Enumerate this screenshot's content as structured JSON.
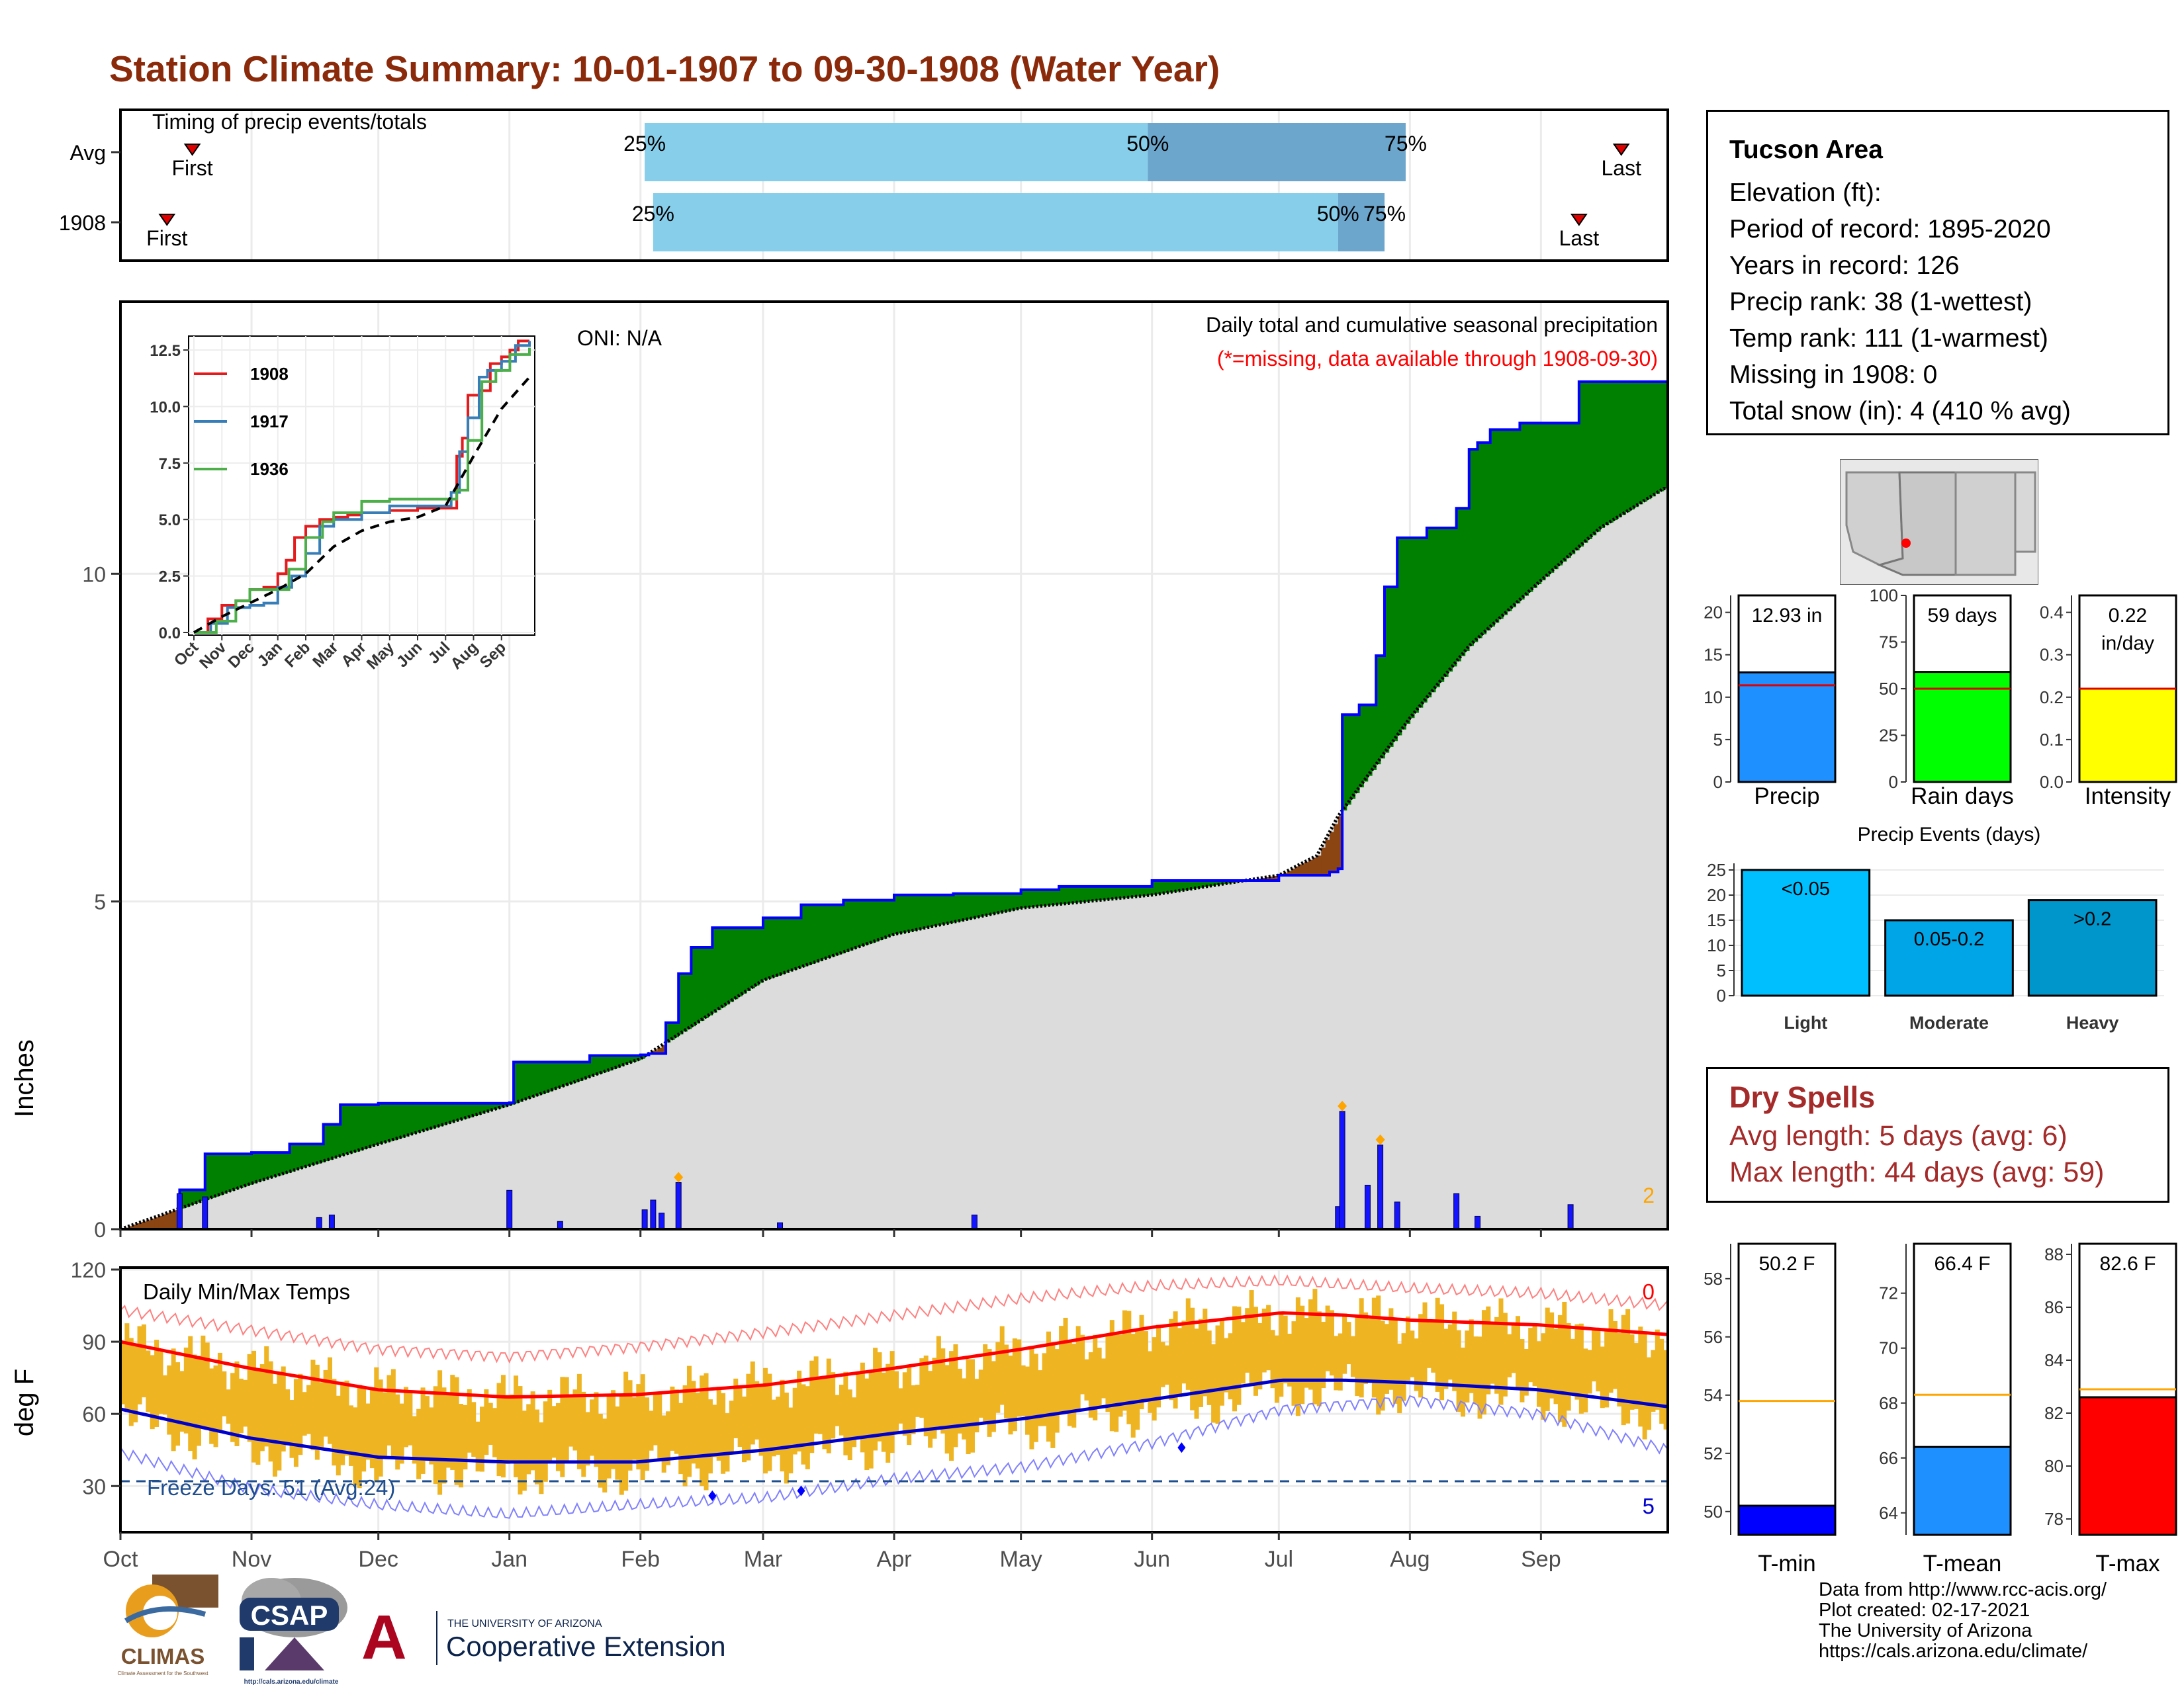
{
  "page": {
    "title": "Station Climate Summary: 10-01-1907 to 09-30-1908 (Water Year)"
  },
  "timing_panel": {
    "label": "Timing of precip events/totals",
    "rows": [
      {
        "label": "Avg",
        "first": "First",
        "last": "Last",
        "p25": "25%",
        "p50": "50%",
        "p75": "75%",
        "first_day": 17,
        "p25_day": 124,
        "p50_day": 243,
        "p75_day": 304,
        "last_day": 355
      },
      {
        "label": "1908",
        "first": "First",
        "last": "Last",
        "p25": "25%",
        "p50": "50%",
        "p75": "75%",
        "first_day": 11,
        "p25_day": 126,
        "p50_day": 288,
        "p75_day": 299,
        "last_day": 345
      }
    ]
  },
  "precip_panel": {
    "oni": "ONI: N/A",
    "header": "Daily total and cumulative seasonal precipitation",
    "missing_note": "(*=missing, data available through 1908-09-30)",
    "y_axis_title": "Inches",
    "y_ticks": [
      "0",
      "5",
      "10"
    ],
    "corner_count": "2",
    "colors": {
      "above": "#008000",
      "below": "#8B4513",
      "normal_fill": "#DCDCDC",
      "cum_line": "#0000FF",
      "bars": "#0000FF",
      "extreme_marker": "#FFA500"
    }
  },
  "inset_chart": {
    "y_ticks": [
      "0.0",
      "2.5",
      "5.0",
      "7.5",
      "10.0",
      "12.5"
    ],
    "x_ticks": [
      "Oct",
      "Nov",
      "Dec",
      "Jan",
      "Feb",
      "Mar",
      "Apr",
      "May",
      "Jun",
      "Jul",
      "Aug",
      "Sep"
    ],
    "legend": [
      {
        "name": "1908",
        "color": "#E41A1C"
      },
      {
        "name": "1917",
        "color": "#377EB8"
      },
      {
        "name": "1936",
        "color": "#4DAF4A"
      }
    ]
  },
  "temp_panel": {
    "label": "Daily Min/Max Temps",
    "y_axis_title": "deg F",
    "y_ticks": [
      "30",
      "60",
      "90",
      "120"
    ],
    "freeze_label": "Freeze Days: 51 (Avg:24)",
    "count_top": "0",
    "count_bottom": "5",
    "x_ticks": [
      "Oct",
      "Nov",
      "Dec",
      "Jan",
      "Feb",
      "Mar",
      "Apr",
      "May",
      "Jun",
      "Jul",
      "Aug",
      "Sep"
    ],
    "colors": {
      "daily_range": "#EEB422",
      "avg_max": "#FF0000",
      "avg_min": "#0000CD",
      "record": "#FF9999",
      "record_min": "#9999FF"
    }
  },
  "station": {
    "name": "Tucson Area",
    "lines": [
      "Elevation (ft):",
      "Period of record: 1895-2020",
      "Years in record: 126",
      "Precip rank: 38 (1-wettest)",
      "Temp rank: 111 (1-warmest)",
      "Missing in 1908: 0",
      "Total snow (in): 4 (410 % avg)"
    ]
  },
  "dry_spells": {
    "title": "Dry Spells",
    "avg_length": "Avg length: 5 days (avg: 6)",
    "max_length": "Max length: 44 days (avg: 59)"
  },
  "mini_bars": [
    {
      "label": "Precip",
      "value_label": "12.93 in",
      "value_label2": "",
      "ticks": [
        "0",
        "5",
        "10",
        "15",
        "20"
      ],
      "ymin": 0,
      "ymax": 22,
      "value": 12.93,
      "avg": 11.4,
      "color": "#1E90FF"
    },
    {
      "label": "Rain days",
      "value_label": "59 days",
      "value_label2": "",
      "ticks": [
        "0",
        "25",
        "50",
        "75",
        "100"
      ],
      "ymin": 0,
      "ymax": 100,
      "value": 59,
      "avg": 50,
      "color": "#00FF00"
    },
    {
      "label": "Intensity",
      "value_label": "0.22",
      "value_label2": "in/day",
      "ticks": [
        "0.0",
        "0.1",
        "0.2",
        "0.3",
        "0.4"
      ],
      "ymin": 0,
      "ymax": 0.44,
      "value": 0.22,
      "avg": 0.22,
      "color": "#FFFF00"
    }
  ],
  "events_chart": {
    "title": "Precip Events (days)",
    "ticks": [
      "0",
      "5",
      "10",
      "15",
      "20",
      "25"
    ],
    "ymax": 25,
    "categories": [
      "Light",
      "Moderate",
      "Heavy"
    ],
    "value_labels": [
      "<0.05",
      "0.05-0.2",
      ">0.2"
    ],
    "values": [
      25,
      15,
      19
    ],
    "colors": [
      "#00BFFF",
      "#00A5E8",
      "#0096CC"
    ]
  },
  "temp_bars": [
    {
      "label": "T-min",
      "value_label": "50.2 F",
      "ticks": [
        "50",
        "52",
        "54",
        "56",
        "58"
      ],
      "ymin": 49.2,
      "ymax": 59.2,
      "value": 50.2,
      "avg": 53.8,
      "color": "#0000FF"
    },
    {
      "label": "T-mean",
      "value_label": "66.4 F",
      "ticks": [
        "64",
        "66",
        "68",
        "70",
        "72"
      ],
      "ymin": 63.2,
      "ymax": 73.8,
      "value": 66.4,
      "avg": 68.3,
      "color": "#1E90FF"
    },
    {
      "label": "T-max",
      "value_label": "82.6 F",
      "ticks": [
        "78",
        "80",
        "82",
        "84",
        "86",
        "88"
      ],
      "ymin": 77.4,
      "ymax": 88.4,
      "value": 82.6,
      "avg": 82.9,
      "color": "#FF0000"
    }
  ],
  "credits": {
    "lines": [
      "Data from http://www.rcc-acis.org/",
      "Plot created: 02-17-2021",
      "The University of Arizona",
      "https://cals.arizona.edu/climate/"
    ]
  },
  "logos": {
    "climas": "CLIMAS",
    "climas_sub": "Climate Assessment for the Southwest",
    "csap": "CSAP",
    "csap_url": "http://cals.arizona.edu/climate",
    "ua_small": "THE UNIVERSITY OF ARIZONA",
    "ua_big": "Cooperative Extension"
  },
  "chart_data": [
    {
      "type": "area",
      "title": "Daily total and cumulative seasonal precipitation",
      "ylabel": "Inches",
      "ylim": [
        0,
        12.9
      ],
      "xlim": [
        "1907-10-01",
        "1908-09-30"
      ],
      "series": [
        {
          "name": "cumulative 1908",
          "x": [
            "1907-10-01",
            "1907-10-15",
            "1907-10-21",
            "1907-11-01",
            "1907-11-10",
            "1907-11-18",
            "1907-11-22",
            "1907-12-01",
            "1908-01-01",
            "1908-01-02",
            "1908-01-20",
            "1908-02-01",
            "1908-02-03",
            "1908-02-07",
            "1908-02-10",
            "1908-02-13",
            "1908-02-18",
            "1908-03-01",
            "1908-03-10",
            "1908-03-20",
            "1908-04-01",
            "1908-04-15",
            "1908-05-01",
            "1908-05-10",
            "1908-06-01",
            "1908-07-01",
            "1908-07-13",
            "1908-07-15",
            "1908-07-16",
            "1908-07-20",
            "1908-07-24",
            "1908-07-26",
            "1908-07-29",
            "1908-08-05",
            "1908-08-12",
            "1908-08-15",
            "1908-08-17",
            "1908-08-20",
            "1908-08-27",
            "1908-09-10",
            "1908-09-30"
          ],
          "values": [
            0,
            0.6,
            1.15,
            1.17,
            1.3,
            1.6,
            1.9,
            1.92,
            1.93,
            2.55,
            2.65,
            2.66,
            2.68,
            3.15,
            3.9,
            4.3,
            4.6,
            4.75,
            4.95,
            5.02,
            5.1,
            5.12,
            5.18,
            5.23,
            5.32,
            5.4,
            5.45,
            5.5,
            7.85,
            8.0,
            8.75,
            9.8,
            10.55,
            10.7,
            11.0,
            11.9,
            12.0,
            12.2,
            12.3,
            12.93,
            12.93
          ]
        },
        {
          "name": "average cumulative",
          "x": [
            "1907-10-01",
            "1907-11-01",
            "1907-12-01",
            "1908-01-01",
            "1908-02-01",
            "1908-03-01",
            "1908-04-01",
            "1908-05-01",
            "1908-06-01",
            "1908-07-01",
            "1908-07-10",
            "1908-07-15",
            "1908-08-01",
            "1908-08-15",
            "1908-09-01",
            "1908-09-15",
            "1908-09-30"
          ],
          "values": [
            0,
            0.7,
            1.3,
            1.9,
            2.6,
            3.8,
            4.5,
            4.9,
            5.1,
            5.4,
            5.7,
            6.3,
            7.8,
            8.9,
            9.9,
            10.7,
            11.3
          ]
        }
      ],
      "daily_precip": {
        "x": [
          "1907-10-15",
          "1907-10-21",
          "1907-11-17",
          "1907-11-20",
          "1908-01-01",
          "1908-01-13",
          "1908-02-02",
          "1908-02-04",
          "1908-02-06",
          "1908-02-10",
          "1908-03-05",
          "1908-04-20",
          "1908-07-15",
          "1908-07-16",
          "1908-07-22",
          "1908-07-25",
          "1908-07-29",
          "1908-08-12",
          "1908-08-17",
          "1908-09-08"
        ],
        "values": [
          0.55,
          0.5,
          0.18,
          0.22,
          0.6,
          0.12,
          0.3,
          0.45,
          0.25,
          0.72,
          0.1,
          0.22,
          0.35,
          1.82,
          0.68,
          1.3,
          0.42,
          0.55,
          0.2,
          0.38
        ]
      }
    },
    {
      "type": "line",
      "title": "",
      "x_ticks": [
        "Oct",
        "Nov",
        "Dec",
        "Jan",
        "Feb",
        "Mar",
        "Apr",
        "May",
        "Jun",
        "Jul",
        "Aug",
        "Sep"
      ],
      "ylim": [
        0,
        13
      ],
      "series": [
        {
          "name": "1908",
          "x_month": [
            0,
            0.5,
            1.0,
            1.5,
            2,
            2.5,
            3,
            3.3,
            3.6,
            4,
            4.5,
            5,
            5.5,
            6,
            7,
            8,
            9,
            9.4,
            9.6,
            9.8,
            10.2,
            10.6,
            11,
            11.3,
            11.6,
            12
          ],
          "values": [
            0,
            0.6,
            1.2,
            1.4,
            1.9,
            2.0,
            2.6,
            3.2,
            4.2,
            4.7,
            5.0,
            5.1,
            5.2,
            5.3,
            5.4,
            5.5,
            5.5,
            7.8,
            8.6,
            10.5,
            10.7,
            11.9,
            12.2,
            12.5,
            12.9,
            12.9
          ]
        },
        {
          "name": "1917",
          "x_month": [
            0,
            0.6,
            1.2,
            2,
            2.5,
            3,
            3.5,
            4,
            4.5,
            5,
            6,
            7,
            8,
            8.8,
            9.2,
            9.5,
            9.8,
            10.2,
            10.5,
            11,
            11.5,
            12
          ],
          "values": [
            0,
            0.4,
            1.1,
            1.2,
            1.3,
            2.0,
            2.5,
            3.5,
            4.7,
            5.0,
            5.3,
            5.6,
            5.6,
            5.6,
            6.2,
            8.0,
            9.5,
            11.3,
            11.6,
            12.0,
            12.7,
            12.9
          ]
        },
        {
          "name": "1936",
          "x_month": [
            0,
            0.8,
            1.5,
            2,
            3,
            3.4,
            4,
            4.6,
            5,
            6,
            7,
            8,
            8.5,
            9,
            9.4,
            9.8,
            10.3,
            10.8,
            11.3,
            12
          ],
          "values": [
            0,
            0.5,
            1.4,
            1.9,
            1.9,
            2.8,
            4.2,
            4.9,
            5.3,
            5.8,
            5.9,
            5.9,
            5.9,
            5.9,
            6.3,
            8.5,
            11.1,
            11.6,
            12.3,
            12.6
          ]
        },
        {
          "name": "average",
          "x_month": [
            0,
            1,
            2,
            3,
            4,
            5,
            6,
            7,
            8,
            9,
            10,
            11,
            12
          ],
          "values": [
            0,
            0.7,
            1.3,
            1.9,
            2.6,
            3.8,
            4.5,
            4.9,
            5.1,
            5.6,
            7.8,
            9.9,
            11.3
          ]
        }
      ]
    },
    {
      "type": "line",
      "title": "Daily Min/Max Temps",
      "ylabel": "deg F",
      "ylim": [
        10,
        120
      ],
      "x_ticks": [
        "Oct",
        "Nov",
        "Dec",
        "Jan",
        "Feb",
        "Mar",
        "Apr",
        "May",
        "Jun",
        "Jul",
        "Aug",
        "Sep"
      ],
      "series": [
        {
          "name": "avg max",
          "x_month": [
            0,
            1,
            2,
            3,
            4,
            5,
            6,
            7,
            8,
            9,
            9.5,
            10,
            11,
            12
          ],
          "values": [
            90,
            79,
            70,
            67,
            68,
            72,
            79,
            87,
            96,
            102,
            101,
            99,
            97,
            93
          ]
        },
        {
          "name": "avg min",
          "x_month": [
            0,
            1,
            2,
            3,
            4,
            5,
            6,
            7,
            8,
            9,
            9.5,
            10,
            11,
            12
          ],
          "values": [
            62,
            50,
            42,
            40,
            40,
            45,
            52,
            58,
            66,
            74,
            74,
            73,
            70,
            63
          ]
        },
        {
          "name": "record high",
          "x_month": [
            0,
            1,
            2,
            3,
            4,
            5,
            6,
            7,
            8,
            9,
            10,
            11,
            12
          ],
          "values": [
            103,
            95,
            87,
            84,
            88,
            94,
            101,
            108,
            113,
            115,
            112,
            110,
            105
          ]
        },
        {
          "name": "record low",
          "x_month": [
            0,
            1,
            2,
            3,
            4,
            5,
            6,
            7,
            8,
            9,
            10,
            11,
            12
          ],
          "values": [
            44,
            29,
            22,
            18,
            22,
            25,
            33,
            38,
            48,
            62,
            66,
            60,
            45
          ]
        }
      ],
      "freeze_threshold": 32
    },
    {
      "type": "bar",
      "title": "Precip Events (days)",
      "categories": [
        "Light",
        "Moderate",
        "Heavy"
      ],
      "values": [
        25,
        15,
        19
      ],
      "ylim": [
        0,
        25
      ]
    },
    {
      "type": "bar",
      "title": "",
      "categories": [
        "Precip",
        "Rain days",
        "Intensity"
      ],
      "values": [
        12.93,
        59,
        0.22
      ],
      "averages": [
        11.4,
        50,
        0.22
      ]
    },
    {
      "type": "bar",
      "title": "",
      "categories": [
        "T-min",
        "T-mean",
        "T-max"
      ],
      "values": [
        50.2,
        66.4,
        82.6
      ],
      "averages": [
        53.8,
        68.3,
        82.9
      ]
    }
  ]
}
